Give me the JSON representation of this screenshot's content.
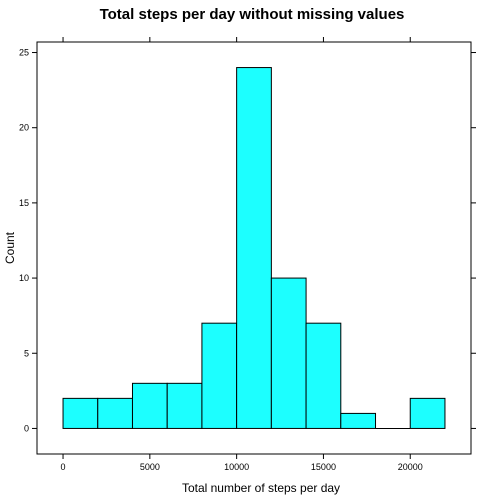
{
  "chart_data": {
    "type": "bar",
    "title": "Total steps per day without missing values",
    "xlabel": "Total number of steps per day",
    "ylabel": "Count",
    "bin_edges": [
      0,
      2000,
      4000,
      6000,
      8000,
      10000,
      12000,
      14000,
      16000,
      18000,
      20000,
      22000
    ],
    "values": [
      2,
      2,
      3,
      3,
      7,
      24,
      10,
      7,
      1,
      0,
      2
    ],
    "xlim": [
      -1500,
      23500
    ],
    "ylim": [
      -1.7,
      25.7
    ],
    "x_ticks": [
      0,
      5000,
      10000,
      15000,
      20000
    ],
    "y_ticks": [
      0,
      5,
      10,
      15,
      20,
      25
    ],
    "grid": false,
    "bar_color": "#1CFFFF",
    "bar_edge_color": "#000000"
  }
}
